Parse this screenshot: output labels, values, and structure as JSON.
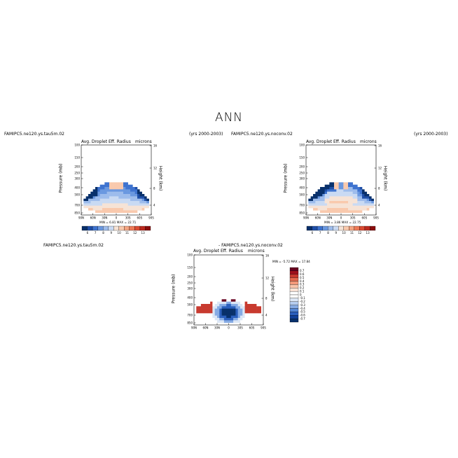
{
  "title": "ANN",
  "panels": [
    {
      "case": "FAMIPC5.ne120.ys.tau5m.02",
      "years": "(yrs 2000-2003)",
      "variable": "Avg. Droplet Eff. Radius",
      "units": "microns",
      "ylabel": "Pressure (mb)",
      "y2label": "Height (km)",
      "stats": "MIN =    6.81   MAX =   22.71",
      "mode": "abs",
      "colorbar_labels": [
        "6",
        "7",
        "8",
        "9",
        "10",
        "11",
        "12",
        "13"
      ]
    },
    {
      "case": "FAMIPC5.ne120.ys.noconv.02",
      "years": "(yrs 2000-2003)",
      "variable": "Avg. Droplet Eff. Radius",
      "units": "microns",
      "ylabel": "Pressure (mb)",
      "y2label": "Height (km)",
      "stats": "MIN =    3.86   MAX =   22.75",
      "mode": "abs2",
      "colorbar_labels": [
        "6",
        "7",
        "8",
        "9",
        "10",
        "11",
        "12",
        "13"
      ]
    },
    {
      "case": "FAMIPC5.ne120.ys.tau5m.02",
      "case_b": "- FAMIPC5.ne120.ys.noconv.02",
      "variable": "Avg. Droplet Eff. Radius",
      "units": "microns",
      "ylabel": "Pressure (mb)",
      "y2label": "Height (km)",
      "stats": "MIN =  -5.72   MAX =  17.84",
      "mode": "diff",
      "colorbar_labels": [
        "0.7",
        "0.6",
        "0.5",
        "0.4",
        "0.3",
        "0.2",
        "0.1",
        "0",
        "-0.1",
        "-0.2",
        "-0.3",
        "-0.4",
        "-0.5",
        "-0.6",
        "-0.7"
      ]
    }
  ],
  "chart_data": {
    "type": "heatmap",
    "x_ticks": [
      "90N",
      "60N",
      "30N",
      "0",
      "30S",
      "60S",
      "90S"
    ],
    "y_ticks": [
      "100",
      "150",
      "200",
      "250",
      "300",
      "400",
      "500",
      "700",
      "850"
    ],
    "y2_ticks": [
      "16",
      "12",
      "8",
      "4"
    ],
    "abs_colors": [
      "#08306b",
      "#1f4fa8",
      "#3e73cf",
      "#6a98e0",
      "#9dbcec",
      "#c9daf3",
      "#f6e3d6",
      "#f9c9ad",
      "#f5a582",
      "#ee7a57",
      "#dc4c33",
      "#bd2a1f",
      "#8c0d0d"
    ],
    "diff_colors": [
      "#67001f",
      "#a0101c",
      "#c83a2f",
      "#e46a4f",
      "#f3997a",
      "#f9c4ab",
      "#fce4d6",
      "#ffffff",
      "#ffffff",
      "#dce7f6",
      "#b6cdef",
      "#86abe4",
      "#5587d5",
      "#2b5fbd",
      "#103f97",
      "#08306b"
    ]
  }
}
